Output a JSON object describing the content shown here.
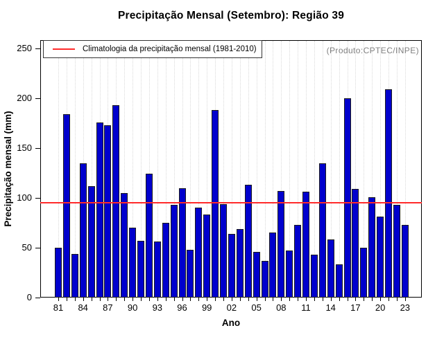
{
  "header": {
    "title": "Precipitação Mensal (Setembro): Região 39"
  },
  "legend": {
    "label": "Climatologia da precipitação mensal (1981-2010)"
  },
  "annotation": {
    "producer": "(Produto:CPTEC/INPE)"
  },
  "chart_data": {
    "type": "bar",
    "title": "Precipitação Mensal (Setembro): Região 39",
    "xlabel": "Ano",
    "ylabel": "Precipitação mensal (mm)",
    "ylim": [
      0,
      250
    ],
    "yticks": [
      0,
      50,
      100,
      150,
      200,
      250
    ],
    "xtick_labels": [
      "81",
      "84",
      "87",
      "90",
      "93",
      "96",
      "99",
      "02",
      "05",
      "08",
      "11",
      "14",
      "17",
      "20",
      "23"
    ],
    "xtick_label_step": 3,
    "years": [
      1981,
      1982,
      1983,
      1984,
      1985,
      1986,
      1987,
      1988,
      1989,
      1990,
      1991,
      1992,
      1993,
      1994,
      1995,
      1996,
      1997,
      1998,
      1999,
      2000,
      2001,
      2002,
      2003,
      2004,
      2005,
      2006,
      2007,
      2008,
      2009,
      2010,
      2011,
      2012,
      2013,
      2014,
      2015,
      2016,
      2017,
      2018,
      2019,
      2020,
      2021,
      2022,
      2023
    ],
    "values": [
      50,
      184,
      44,
      135,
      112,
      176,
      173,
      193,
      105,
      70,
      57,
      124,
      56,
      75,
      93,
      110,
      48,
      90,
      83,
      188,
      94,
      64,
      69,
      113,
      46,
      37,
      65,
      107,
      47,
      73,
      106,
      43,
      135,
      58,
      33,
      200,
      109,
      50,
      101,
      81,
      209,
      93,
      73
    ],
    "climatology_mean": 95,
    "legend_label": "Climatologia da precipitação mensal (1981-2010)",
    "legend_position": "top-left",
    "grid": "vertical-dotted",
    "colors": {
      "bar": "#0000cd",
      "bar_border": "#1a1a1a",
      "climatology_line": "#ff2a2a",
      "grid": "#d9d9d9",
      "annotation_text": "#808080"
    }
  }
}
